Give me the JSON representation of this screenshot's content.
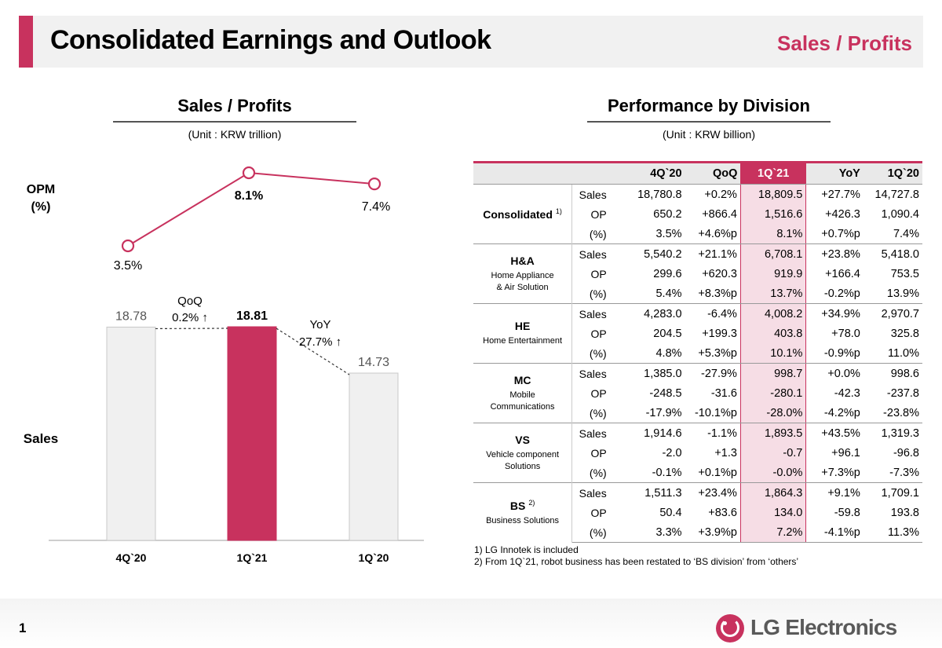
{
  "header": {
    "title": "Consolidated Earnings and Outlook",
    "section": "Sales / Profits",
    "accent_color": "#c8325e"
  },
  "left_panel": {
    "title": "Sales / Profits",
    "unit": "(Unit : KRW trillion)",
    "opm_label_line1": "OPM",
    "opm_label_line2": "(%)",
    "sales_label": "Sales",
    "qoq_label": "QoQ",
    "qoq_value": "0.2% ↑",
    "yoy_label": "YoY",
    "yoy_value": "27.7% ↑"
  },
  "chart_data": {
    "type": "bar",
    "categories": [
      "4Q`20",
      "1Q`21",
      "1Q`20"
    ],
    "series": [
      {
        "name": "Sales",
        "values": [
          18.78,
          18.81,
          14.73
        ],
        "labels": [
          "18.78",
          "18.81",
          "14.73"
        ]
      },
      {
        "name": "OPM",
        "type": "line",
        "values": [
          3.5,
          8.1,
          7.4
        ],
        "labels": [
          "3.5%",
          "8.1%",
          "7.4%"
        ]
      }
    ],
    "highlight_index": 1,
    "colors": {
      "bar": "#f0f0f0",
      "bar_highlight": "#c8325e",
      "line": "#c8325e"
    },
    "ylim": [
      0,
      20
    ],
    "opm_ylim": [
      0,
      10
    ]
  },
  "right_panel": {
    "title": "Performance by Division",
    "unit": "(Unit : KRW billion)",
    "columns": [
      "4Q`20",
      "QoQ",
      "1Q`21",
      "YoY",
      "1Q`20"
    ],
    "highlight_column": "1Q`21",
    "divisions": [
      {
        "code": "Consolidated",
        "sup": "1)",
        "name": "",
        "rows": [
          {
            "metric": "Sales",
            "values": [
              "18,780.8",
              "+0.2%",
              "18,809.5",
              "+27.7%",
              "14,727.8"
            ]
          },
          {
            "metric": "OP",
            "values": [
              "650.2",
              "+866.4",
              "1,516.6",
              "+426.3",
              "1,090.4"
            ]
          },
          {
            "metric": "(%)",
            "values": [
              "3.5%",
              "+4.6%p",
              "8.1%",
              "+0.7%p",
              "7.4%"
            ]
          }
        ]
      },
      {
        "code": "H&A",
        "sup": "",
        "name": "Home Appliance\n& Air Solution",
        "rows": [
          {
            "metric": "Sales",
            "values": [
              "5,540.2",
              "+21.1%",
              "6,708.1",
              "+23.8%",
              "5,418.0"
            ]
          },
          {
            "metric": "OP",
            "values": [
              "299.6",
              "+620.3",
              "919.9",
              "+166.4",
              "753.5"
            ]
          },
          {
            "metric": "(%)",
            "values": [
              "5.4%",
              "+8.3%p",
              "13.7%",
              "-0.2%p",
              "13.9%"
            ]
          }
        ]
      },
      {
        "code": "HE",
        "sup": "",
        "name": "Home Entertainment",
        "rows": [
          {
            "metric": "Sales",
            "values": [
              "4,283.0",
              "-6.4%",
              "4,008.2",
              "+34.9%",
              "2,970.7"
            ]
          },
          {
            "metric": "OP",
            "values": [
              "204.5",
              "+199.3",
              "403.8",
              "+78.0",
              "325.8"
            ]
          },
          {
            "metric": "(%)",
            "values": [
              "4.8%",
              "+5.3%p",
              "10.1%",
              "-0.9%p",
              "11.0%"
            ]
          }
        ]
      },
      {
        "code": "MC",
        "sup": "",
        "name": "Mobile Communications",
        "rows": [
          {
            "metric": "Sales",
            "values": [
              "1,385.0",
              "-27.9%",
              "998.7",
              "+0.0%",
              "998.6"
            ]
          },
          {
            "metric": "OP",
            "values": [
              "-248.5",
              "-31.6",
              "-280.1",
              "-42.3",
              "-237.8"
            ]
          },
          {
            "metric": "(%)",
            "values": [
              "-17.9%",
              "-10.1%p",
              "-28.0%",
              "-4.2%p",
              "-23.8%"
            ]
          }
        ]
      },
      {
        "code": "VS",
        "sup": "",
        "name": "Vehicle component\nSolutions",
        "rows": [
          {
            "metric": "Sales",
            "values": [
              "1,914.6",
              "-1.1%",
              "1,893.5",
              "+43.5%",
              "1,319.3"
            ]
          },
          {
            "metric": "OP",
            "values": [
              "-2.0",
              "+1.3",
              "-0.7",
              "+96.1",
              "-96.8"
            ]
          },
          {
            "metric": "(%)",
            "values": [
              "-0.1%",
              "+0.1%p",
              "-0.0%",
              "+7.3%p",
              "-7.3%"
            ]
          }
        ]
      },
      {
        "code": "BS",
        "sup": "2)",
        "name": "Business Solutions",
        "rows": [
          {
            "metric": "Sales",
            "values": [
              "1,511.3",
              "+23.4%",
              "1,864.3",
              "+9.1%",
              "1,709.1"
            ]
          },
          {
            "metric": "OP",
            "values": [
              "50.4",
              "+83.6",
              "134.0",
              "-59.8",
              "193.8"
            ]
          },
          {
            "metric": "(%)",
            "values": [
              "3.3%",
              "+3.9%p",
              "7.2%",
              "-4.1%p",
              "11.3%"
            ]
          }
        ]
      }
    ],
    "notes": [
      "1) LG Innotek is included",
      "2) From 1Q`21, robot business has been restated to ‘BS division’ from ‘others’"
    ]
  },
  "footer": {
    "page_number": "1",
    "logo_text": "LG Electronics"
  }
}
